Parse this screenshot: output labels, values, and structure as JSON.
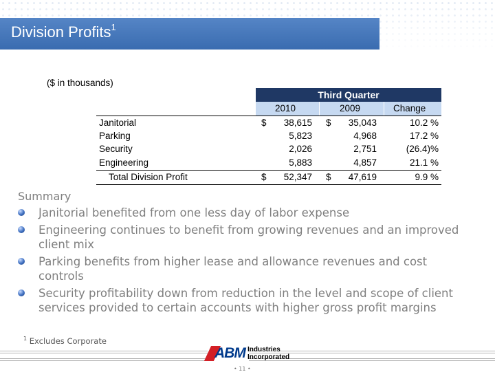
{
  "slide": {
    "title": "Division Profits",
    "title_superscript": "1",
    "page_number": "11",
    "accent_color": "#3f6fb5"
  },
  "table": {
    "units_note": "($ in thousands)",
    "period_header": "Third Quarter",
    "columns": [
      "2010",
      "2009",
      "Change"
    ],
    "rows": [
      {
        "label": "Janitorial",
        "dollar_2010": "$",
        "v2010": "38,615",
        "dollar_2009": "$",
        "v2009": "35,043",
        "change": "10.2 %"
      },
      {
        "label": "Parking",
        "dollar_2010": "",
        "v2010": "5,823",
        "dollar_2009": "",
        "v2009": "4,968",
        "change": "17.2 %"
      },
      {
        "label": "Security",
        "dollar_2010": "",
        "v2010": "2,026",
        "dollar_2009": "",
        "v2009": "2,751",
        "change": "(26.4)%"
      },
      {
        "label": "Engineering",
        "dollar_2010": "",
        "v2010": "5,883",
        "dollar_2009": "",
        "v2009": "4,857",
        "change": "21.1 %"
      }
    ],
    "total": {
      "label": "Total Division Profit",
      "dollar_2010": "$",
      "v2010": "52,347",
      "dollar_2009": "$",
      "v2009": "47,619",
      "change": "9.9 %"
    }
  },
  "summary": {
    "heading": "Summary",
    "bullets": [
      "Janitorial benefited from one less day of labor expense",
      "Engineering continues to benefit from growing revenues and an improved client mix",
      "Parking benefits from higher lease and allowance revenues and cost controls",
      "Security profitability down from reduction in the level and scope of client services provided to certain accounts with higher gross profit margins"
    ]
  },
  "footnote": {
    "marker": "1",
    "text": "Excludes Corporate"
  },
  "logo": {
    "mark": "ABM",
    "line1": "Industries",
    "line2": "Incorporated"
  }
}
